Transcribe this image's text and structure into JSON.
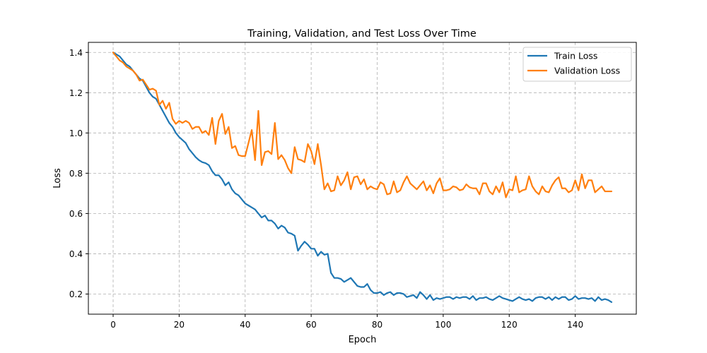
{
  "chart_data": {
    "type": "line",
    "title": "Training, Validation, and Test Loss Over Time",
    "xlabel": "Epoch",
    "ylabel": "Loss",
    "xlim": [
      -7.5,
      158.5
    ],
    "ylim": [
      0.1,
      1.45
    ],
    "xticks": [
      0,
      20,
      40,
      60,
      80,
      100,
      120,
      140
    ],
    "yticks": [
      0.2,
      0.4,
      0.6,
      0.8,
      1.0,
      1.2,
      1.4
    ],
    "xtick_labels": [
      "0",
      "20",
      "40",
      "60",
      "80",
      "100",
      "120",
      "140"
    ],
    "ytick_labels": [
      "0.2",
      "0.4",
      "0.6",
      "0.8",
      "1.0",
      "1.2",
      "1.4"
    ],
    "grid": true,
    "legend_position": "top-right",
    "x": [
      0,
      1,
      2,
      3,
      4,
      5,
      6,
      7,
      8,
      9,
      10,
      11,
      12,
      13,
      14,
      15,
      16,
      17,
      18,
      19,
      20,
      21,
      22,
      23,
      24,
      25,
      26,
      27,
      28,
      29,
      30,
      31,
      32,
      33,
      34,
      35,
      36,
      37,
      38,
      39,
      40,
      41,
      42,
      43,
      44,
      45,
      46,
      47,
      48,
      49,
      50,
      51,
      52,
      53,
      54,
      55,
      56,
      57,
      58,
      59,
      60,
      61,
      62,
      63,
      64,
      65,
      66,
      67,
      68,
      69,
      70,
      71,
      72,
      73,
      74,
      75,
      76,
      77,
      78,
      79,
      80,
      81,
      82,
      83,
      84,
      85,
      86,
      87,
      88,
      89,
      90,
      91,
      92,
      93,
      94,
      95,
      96,
      97,
      98,
      99,
      100,
      101,
      102,
      103,
      104,
      105,
      106,
      107,
      108,
      109,
      110,
      111,
      112,
      113,
      114,
      115,
      116,
      117,
      118,
      119,
      120,
      121,
      122,
      123,
      124,
      125,
      126,
      127,
      128,
      129,
      130,
      131,
      132,
      133,
      134,
      135,
      136,
      137,
      138,
      139,
      140,
      141,
      142,
      143,
      144,
      145,
      146,
      147,
      148,
      149,
      150,
      151
    ],
    "series": [
      {
        "name": "Train Loss",
        "color": "#1f77b4",
        "values": [
          1.4,
          1.39,
          1.38,
          1.36,
          1.34,
          1.33,
          1.31,
          1.29,
          1.27,
          1.26,
          1.23,
          1.2,
          1.18,
          1.17,
          1.14,
          1.11,
          1.08,
          1.05,
          1.03,
          1.0,
          0.98,
          0.965,
          0.95,
          0.92,
          0.9,
          0.88,
          0.865,
          0.855,
          0.85,
          0.84,
          0.81,
          0.79,
          0.79,
          0.77,
          0.74,
          0.755,
          0.72,
          0.7,
          0.69,
          0.67,
          0.65,
          0.64,
          0.63,
          0.62,
          0.6,
          0.58,
          0.59,
          0.565,
          0.565,
          0.55,
          0.525,
          0.54,
          0.53,
          0.505,
          0.5,
          0.49,
          0.415,
          0.44,
          0.46,
          0.445,
          0.425,
          0.425,
          0.39,
          0.41,
          0.395,
          0.4,
          0.305,
          0.28,
          0.28,
          0.275,
          0.26,
          0.27,
          0.28,
          0.26,
          0.24,
          0.235,
          0.235,
          0.25,
          0.22,
          0.205,
          0.205,
          0.21,
          0.195,
          0.205,
          0.21,
          0.195,
          0.205,
          0.205,
          0.2,
          0.185,
          0.19,
          0.195,
          0.18,
          0.21,
          0.195,
          0.175,
          0.195,
          0.17,
          0.18,
          0.175,
          0.18,
          0.185,
          0.185,
          0.175,
          0.185,
          0.18,
          0.185,
          0.185,
          0.175,
          0.19,
          0.17,
          0.18,
          0.18,
          0.185,
          0.175,
          0.17,
          0.18,
          0.19,
          0.18,
          0.175,
          0.17,
          0.165,
          0.175,
          0.185,
          0.175,
          0.17,
          0.175,
          0.165,
          0.18,
          0.185,
          0.185,
          0.175,
          0.185,
          0.17,
          0.185,
          0.175,
          0.185,
          0.185,
          0.17,
          0.175,
          0.19,
          0.175,
          0.18,
          0.18,
          0.175,
          0.18,
          0.165,
          0.185,
          0.17,
          0.175,
          0.17,
          0.16
        ]
      },
      {
        "name": "Validation Loss",
        "color": "#ff7f0e",
        "values": [
          1.4,
          1.38,
          1.36,
          1.35,
          1.33,
          1.32,
          1.31,
          1.29,
          1.26,
          1.265,
          1.24,
          1.215,
          1.22,
          1.21,
          1.14,
          1.16,
          1.12,
          1.15,
          1.07,
          1.045,
          1.06,
          1.05,
          1.06,
          1.05,
          1.02,
          1.03,
          1.03,
          1.0,
          1.01,
          0.99,
          1.075,
          0.945,
          1.06,
          1.095,
          0.995,
          1.03,
          0.925,
          0.935,
          0.89,
          0.885,
          0.885,
          0.95,
          1.015,
          0.865,
          1.11,
          0.84,
          0.905,
          0.91,
          0.895,
          1.05,
          0.87,
          0.89,
          0.865,
          0.825,
          0.8,
          0.93,
          0.87,
          0.865,
          0.855,
          0.945,
          0.91,
          0.845,
          0.945,
          0.84,
          0.72,
          0.75,
          0.71,
          0.715,
          0.785,
          0.74,
          0.765,
          0.805,
          0.72,
          0.78,
          0.785,
          0.745,
          0.77,
          0.72,
          0.735,
          0.725,
          0.72,
          0.755,
          0.745,
          0.695,
          0.7,
          0.76,
          0.705,
          0.715,
          0.755,
          0.785,
          0.75,
          0.735,
          0.72,
          0.74,
          0.76,
          0.715,
          0.74,
          0.7,
          0.75,
          0.775,
          0.715,
          0.715,
          0.72,
          0.735,
          0.73,
          0.715,
          0.72,
          0.745,
          0.73,
          0.725,
          0.725,
          0.695,
          0.75,
          0.75,
          0.71,
          0.695,
          0.735,
          0.705,
          0.755,
          0.68,
          0.72,
          0.715,
          0.785,
          0.705,
          0.715,
          0.72,
          0.785,
          0.735,
          0.71,
          0.695,
          0.735,
          0.71,
          0.705,
          0.74,
          0.765,
          0.78,
          0.725,
          0.725,
          0.705,
          0.715,
          0.765,
          0.715,
          0.795,
          0.725,
          0.765,
          0.765,
          0.705,
          0.72,
          0.735,
          0.71,
          0.71,
          0.71
        ]
      }
    ]
  }
}
